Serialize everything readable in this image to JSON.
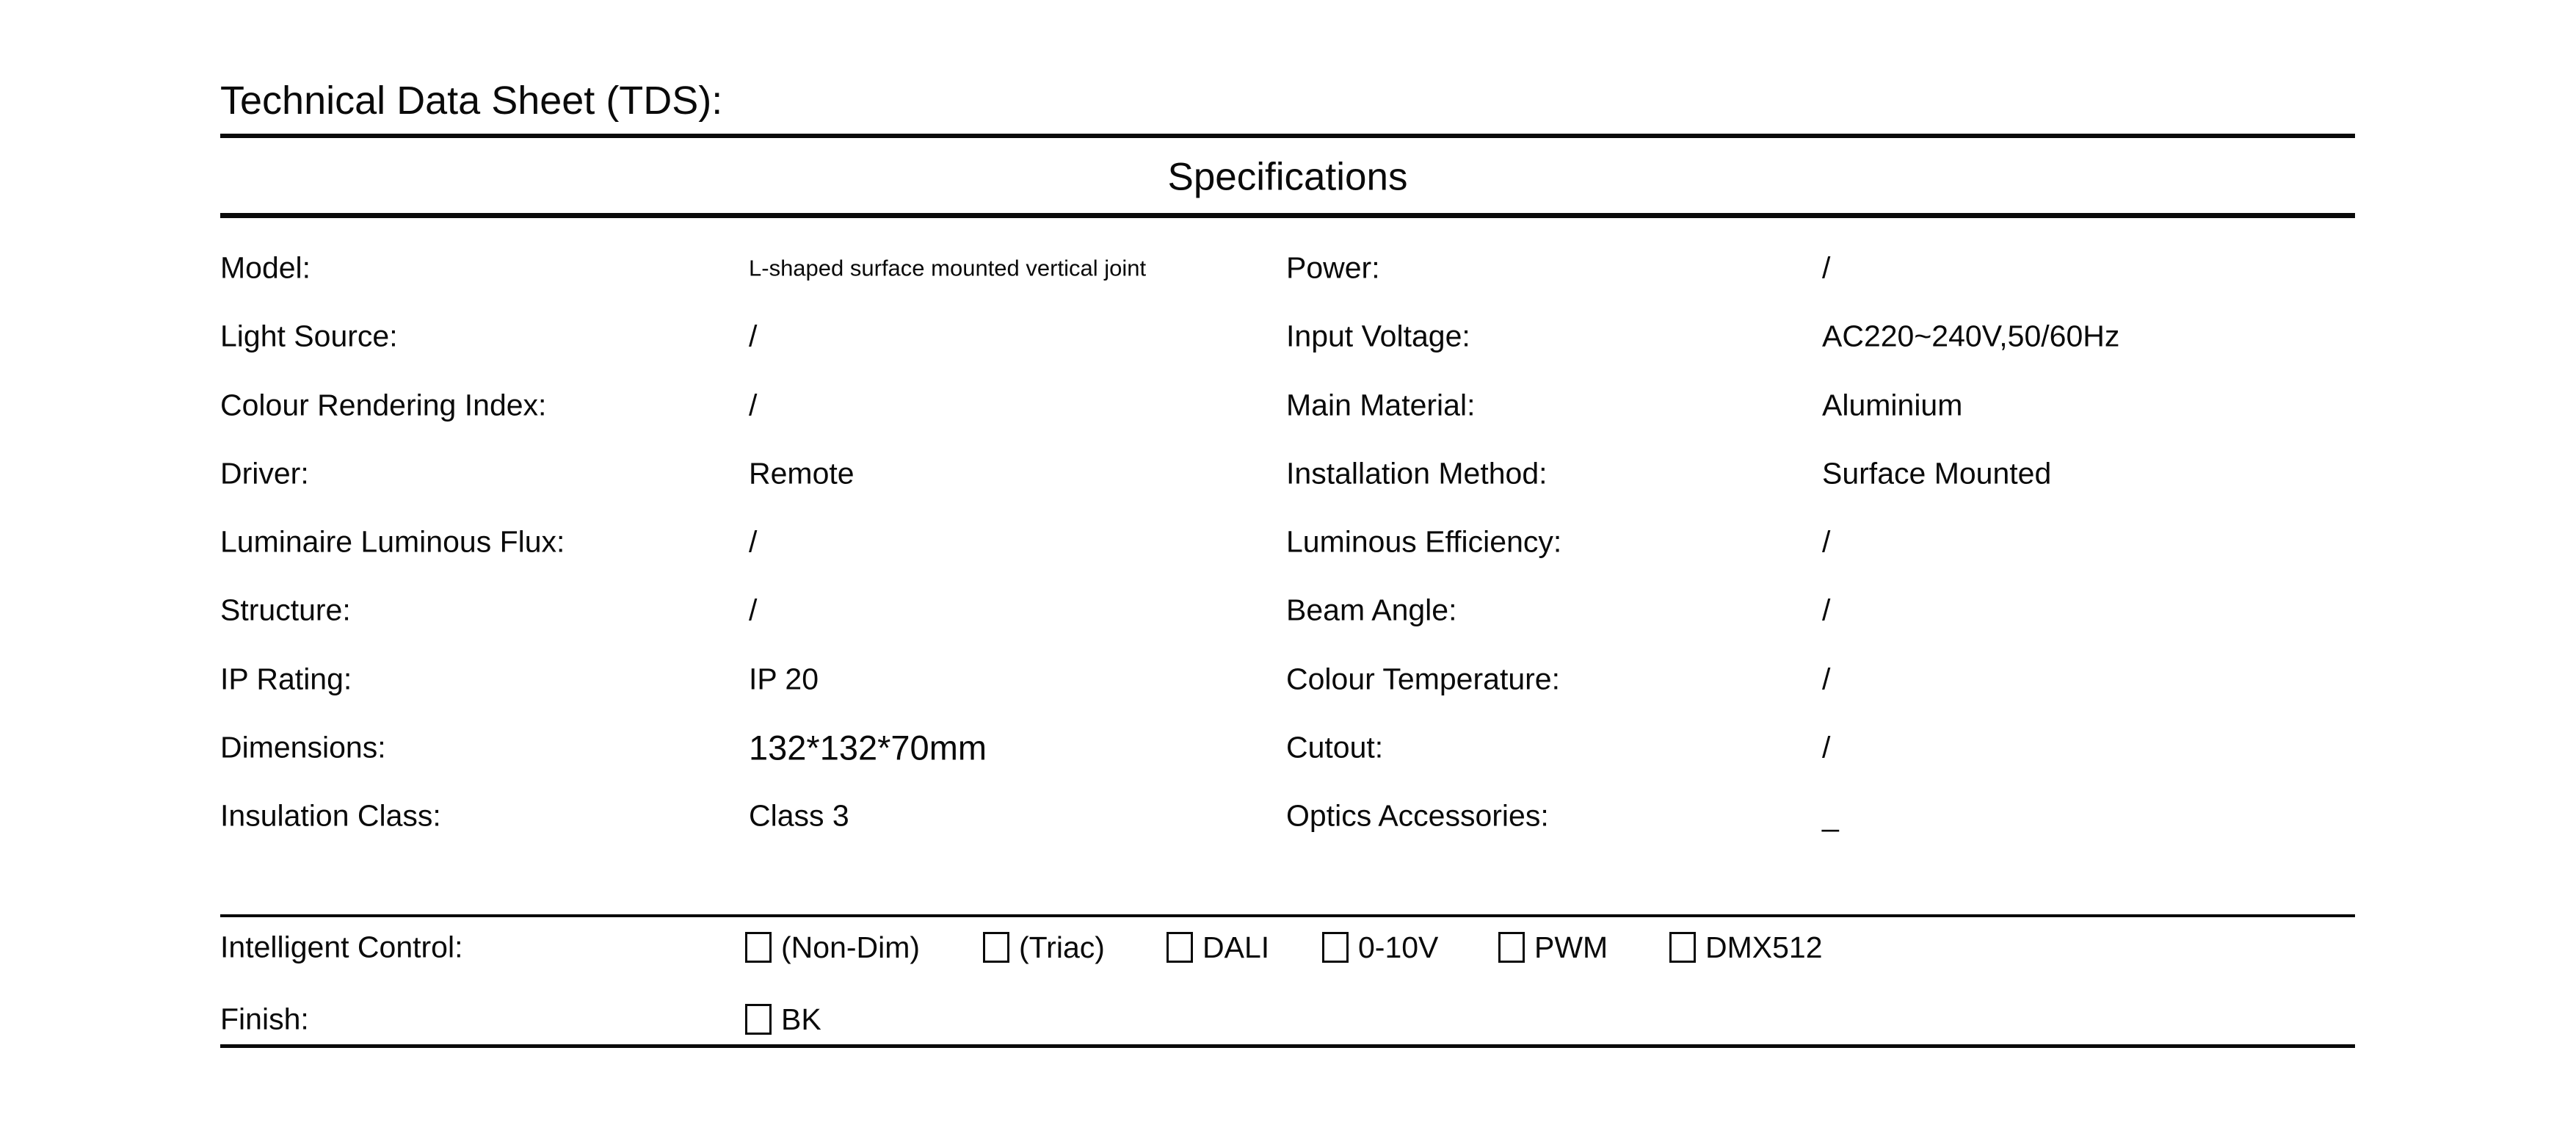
{
  "title": "Technical Data Sheet (TDS):",
  "section_header": "Specifications",
  "spec_rows": [
    {
      "left_label": "Model:",
      "left_value": "L-shaped surface mounted vertical joint",
      "right_label": "Power:",
      "right_value": "/"
    },
    {
      "left_label": "Light Source:",
      "left_value": "/",
      "right_label": "Input Voltage:",
      "right_value": "AC220~240V,50/60Hz"
    },
    {
      "left_label": "Colour Rendering Index:",
      "left_value": "/",
      "right_label": "Main Material:",
      "right_value": "Aluminium"
    },
    {
      "left_label": "Driver:",
      "left_value": "Remote",
      "right_label": "Installation Method:",
      "right_value": "Surface Mounted"
    },
    {
      "left_label": "Luminaire Luminous Flux:",
      "left_value": "/",
      "right_label": "Luminous Efficiency:",
      "right_value": "/"
    },
    {
      "left_label": "Structure:",
      "left_value": "/",
      "right_label": "Beam Angle:",
      "right_value": "/"
    },
    {
      "left_label": "IP Rating:",
      "left_value": "IP 20",
      "right_label": "Colour Temperature:",
      "right_value": "/"
    },
    {
      "left_label": "Dimensions:",
      "left_value": "132*132*70mm",
      "right_label": "Cutout:",
      "right_value": "/"
    },
    {
      "left_label": "Insulation Class:",
      "left_value": "Class 3",
      "right_label": "Optics Accessories:",
      "right_value": "_"
    }
  ],
  "intelligent_control": {
    "label": "Intelligent Control:",
    "options": [
      {
        "label": "(Non-Dim)",
        "checked": false
      },
      {
        "label": "(Triac)",
        "checked": false
      },
      {
        "label": "DALI",
        "checked": false
      },
      {
        "label": "0-10V",
        "checked": false
      },
      {
        "label": "PWM",
        "checked": false
      },
      {
        "label": "DMX512",
        "checked": false
      }
    ]
  },
  "finish": {
    "label": "Finish:",
    "options": [
      {
        "label": "BK",
        "checked": false
      }
    ]
  },
  "colors": {
    "text": "#0a0a0a",
    "line": "#0a0a0a",
    "background": "#ffffff"
  }
}
